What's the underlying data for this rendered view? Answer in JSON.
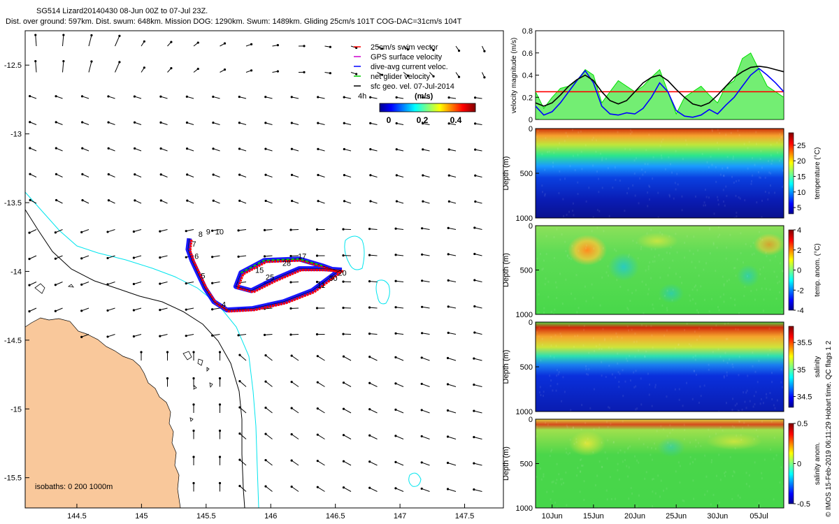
{
  "header": {
    "line1": "SG514 Lizard20140430 08-Jun 00Z to 07-Jul 23Z.",
    "line2": "Dist. over ground: 597km. Dist. swum: 648km. Mission DOG: 1290km. Swum: 1489km. Gliding 25cm/s 101T COG-DAC=31cm/s 104T"
  },
  "credit": "© IMOS 15-Feb-2019 06:11:29 Hobart time. QC flags 1  2",
  "colors": {
    "land": "#f9c89b",
    "isobath_200": "#000000",
    "isobath_1000": "#00e5ee",
    "swim": "#ff0000",
    "gps": "#cc00cc",
    "dac": "#0000ff",
    "net": "#00cc00",
    "geo": "#000000"
  },
  "chart_data": [
    {
      "type": "map-quiver",
      "xlim": [
        144.1,
        147.8
      ],
      "ylim": [
        -15.72,
        -12.25
      ],
      "xticks": [
        144.5,
        145,
        145.5,
        146,
        146.5,
        147,
        147.5
      ],
      "xtick_labels": [
        "144.5",
        "145",
        "145.5",
        "146",
        "146.5",
        "147",
        "147.5"
      ],
      "yticks": [
        -12.5,
        -13,
        -13.5,
        -14,
        -14.5,
        -15,
        -15.5
      ],
      "ytick_labels": [
        "-12.5",
        "-13",
        "-13.5",
        "-14",
        "-14.5",
        "-15",
        "-15.5"
      ],
      "legend": {
        "position": "top-right",
        "entries": [
          {
            "label": "25cm/s swim vector",
            "color": "#ff0000"
          },
          {
            "label": "GPS surface velocity",
            "color": "#cc00cc"
          },
          {
            "label": "dive-avg current veloc.",
            "color": "#0000ff"
          },
          {
            "label": "net glider velocity",
            "color": "#00cc00"
          },
          {
            "label": "sfc geo. vel. 07-Jul-2014",
            "color": "#000000"
          }
        ],
        "interval_label": "4h"
      },
      "colorbar": {
        "title": "(m/s)",
        "ticks": [
          0,
          0.2,
          0.4
        ],
        "tick_labels": [
          "0",
          "0.2",
          "0.4"
        ],
        "range": [
          0,
          0.5
        ]
      },
      "isobaths_label": "isobaths: 0   200  1000m",
      "track": [
        [
          145.37,
          -13.76
        ],
        [
          145.36,
          -13.84
        ],
        [
          145.39,
          -13.92
        ],
        [
          145.44,
          -14.02
        ],
        [
          145.49,
          -14.12
        ],
        [
          145.56,
          -14.22
        ],
        [
          145.66,
          -14.28
        ],
        [
          145.86,
          -14.27
        ],
        [
          146.1,
          -14.22
        ],
        [
          146.32,
          -14.14
        ],
        [
          146.52,
          -14.0
        ],
        [
          146.4,
          -13.96
        ],
        [
          146.22,
          -13.91
        ],
        [
          145.95,
          -13.92
        ],
        [
          145.77,
          -14.01
        ],
        [
          145.73,
          -14.11
        ],
        [
          145.85,
          -14.14
        ],
        [
          146.02,
          -14.06
        ],
        [
          146.22,
          -13.98
        ],
        [
          146.4,
          -13.98
        ],
        [
          146.55,
          -13.99
        ]
      ],
      "day_labels": [
        {
          "text": "4",
          "lon": 145.62,
          "lat": -14.26
        },
        {
          "text": "5",
          "lon": 145.46,
          "lat": -14.05
        },
        {
          "text": "6",
          "lon": 145.41,
          "lat": -13.91
        },
        {
          "text": "7",
          "lon": 145.39,
          "lat": -13.82
        },
        {
          "text": "8",
          "lon": 145.44,
          "lat": -13.75
        },
        {
          "text": "9",
          "lon": 145.5,
          "lat": -13.73
        },
        {
          "text": "10",
          "lon": 145.57,
          "lat": -13.73
        },
        {
          "text": "11",
          "lon": 146.36,
          "lat": -14.12
        },
        {
          "text": "15",
          "lon": 145.88,
          "lat": -14.01
        },
        {
          "text": "17",
          "lon": 146.21,
          "lat": -13.91
        },
        {
          "text": "20",
          "lon": 146.52,
          "lat": -14.03
        },
        {
          "text": "25",
          "lon": 145.96,
          "lat": -14.06
        },
        {
          "text": "28",
          "lon": 146.09,
          "lat": -13.96
        },
        {
          "text": "30",
          "lon": 146.45,
          "lat": -14.07
        }
      ]
    },
    {
      "type": "line",
      "ylabel": "velocity magnitude (m/s)",
      "ylim": [
        0,
        0.8
      ],
      "yticks": [
        0,
        0.2,
        0.4,
        0.6,
        0.8
      ],
      "xlim": [
        0,
        30
      ],
      "series": [
        {
          "color": "#00e000",
          "x": [
            0,
            1,
            2,
            3,
            4,
            5,
            6,
            7,
            8,
            9,
            10,
            11,
            12,
            13,
            14,
            15,
            16,
            17,
            18,
            19,
            20,
            21,
            22,
            23,
            24,
            25,
            26,
            27,
            28,
            29,
            30
          ],
          "values": [
            0.25,
            0.1,
            0.2,
            0.28,
            0.3,
            0.35,
            0.45,
            0.4,
            0.15,
            0.25,
            0.35,
            0.3,
            0.25,
            0.3,
            0.38,
            0.45,
            0.25,
            0.05,
            0.2,
            0.25,
            0.3,
            0.22,
            0.15,
            0.3,
            0.35,
            0.55,
            0.6,
            0.45,
            0.3,
            0.25,
            0.2
          ]
        },
        {
          "color": "#ff0000",
          "x": [
            0,
            30
          ],
          "values": [
            0.25,
            0.25
          ]
        },
        {
          "color": "#0000ff",
          "x": [
            0,
            1,
            2,
            3,
            4,
            5,
            6,
            7,
            8,
            9,
            10,
            11,
            12,
            13,
            14,
            15,
            16,
            17,
            18,
            19,
            20,
            21,
            22,
            23,
            24,
            25,
            26,
            27,
            28,
            29,
            30
          ],
          "values": [
            0.12,
            0.04,
            0.07,
            0.15,
            0.25,
            0.35,
            0.44,
            0.33,
            0.12,
            0.05,
            0.04,
            0.06,
            0.05,
            0.1,
            0.2,
            0.33,
            0.25,
            0.08,
            0.03,
            0.02,
            0.04,
            0.09,
            0.05,
            0.13,
            0.2,
            0.3,
            0.4,
            0.46,
            0.4,
            0.33,
            0.25
          ]
        },
        {
          "color": "#000000",
          "x": [
            0,
            1,
            2,
            3,
            4,
            5,
            6,
            7,
            8,
            9,
            10,
            11,
            12,
            13,
            14,
            15,
            16,
            17,
            18,
            19,
            20,
            21,
            22,
            23,
            24,
            25,
            26,
            27,
            28,
            29,
            30
          ],
          "values": [
            0.15,
            0.12,
            0.15,
            0.22,
            0.3,
            0.36,
            0.4,
            0.35,
            0.25,
            0.17,
            0.14,
            0.17,
            0.25,
            0.33,
            0.38,
            0.4,
            0.35,
            0.27,
            0.2,
            0.14,
            0.12,
            0.15,
            0.22,
            0.3,
            0.38,
            0.43,
            0.47,
            0.48,
            0.47,
            0.45,
            0.43
          ]
        }
      ]
    },
    {
      "type": "heatmap",
      "ylabel": "Depth (m)",
      "cbar_label": "temperature (°C)",
      "ylim": [
        1000,
        0
      ],
      "yticks": [
        0,
        500,
        1000
      ],
      "cbar_ticks": [
        5,
        10,
        15,
        20,
        25
      ],
      "cbar_range": [
        3,
        29
      ]
    },
    {
      "type": "heatmap",
      "ylabel": "Depth (m)",
      "cbar_label": "temp. anom. (°C)",
      "ylim": [
        1000,
        0
      ],
      "yticks": [
        0,
        500,
        1000
      ],
      "cbar_ticks": [
        -4,
        -2,
        0,
        2,
        4
      ],
      "cbar_range": [
        -4,
        4
      ]
    },
    {
      "type": "heatmap",
      "ylabel": "Depth (m)",
      "cbar_label": "salinity",
      "ylim": [
        1000,
        0
      ],
      "yticks": [
        0,
        500,
        1000
      ],
      "cbar_ticks": [
        34.5,
        35,
        35.5
      ],
      "cbar_range": [
        34.3,
        35.8
      ]
    },
    {
      "type": "heatmap",
      "ylabel": "Depth (m)",
      "cbar_label": "salinity anom.",
      "ylim": [
        1000,
        0
      ],
      "yticks": [
        0,
        500,
        1000
      ],
      "cbar_ticks": [
        -0.5,
        0,
        0.5
      ],
      "cbar_range": [
        -0.5,
        0.5
      ],
      "xticks": [
        2,
        7,
        12,
        17,
        22,
        27
      ],
      "xtick_labels": [
        "10Jun",
        "15Jun",
        "20Jun",
        "25Jun",
        "30Jun",
        "05Jul"
      ],
      "xlim": [
        0,
        30
      ]
    }
  ]
}
